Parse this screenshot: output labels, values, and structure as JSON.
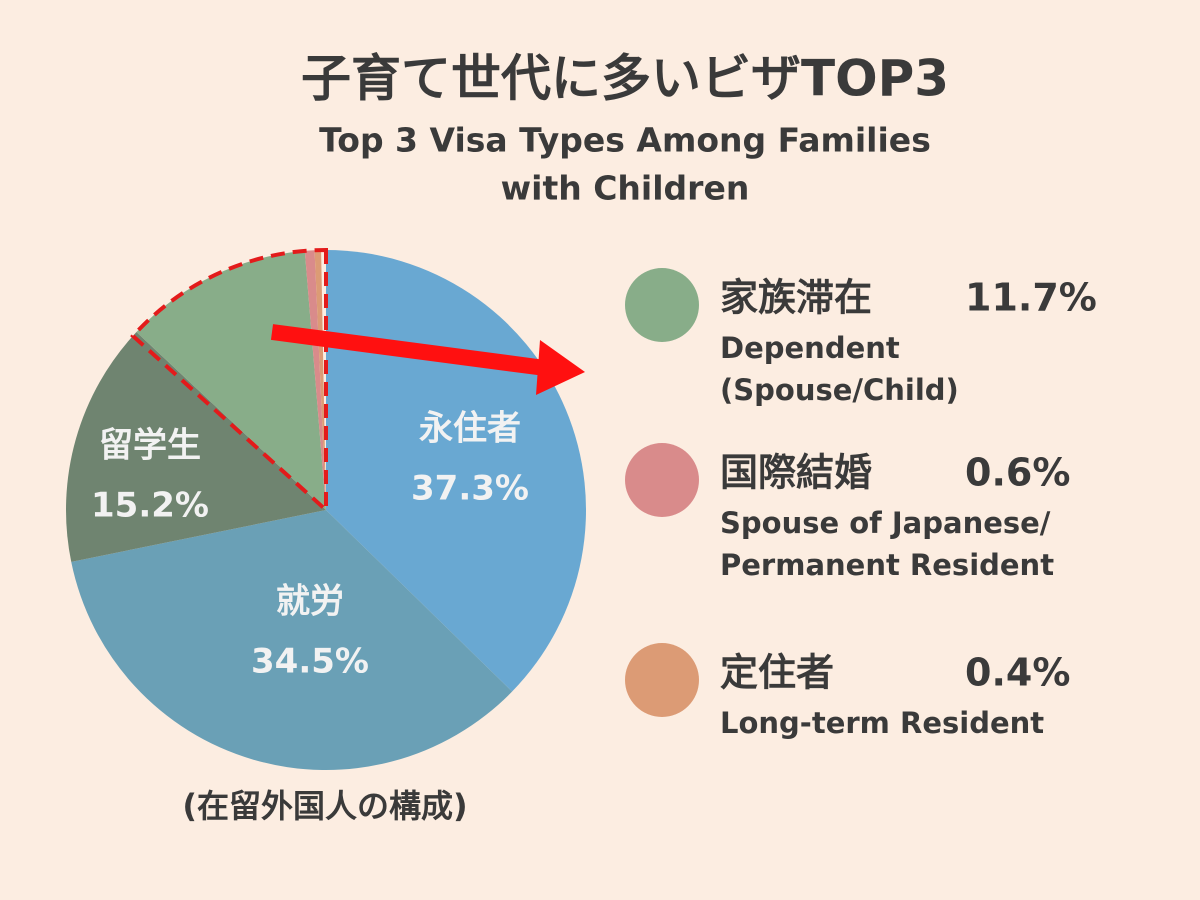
{
  "chart_data": {
    "type": "pie",
    "title": "子育て世代に多いビザTOP3",
    "subtitle": [
      "Top 3 Visa Types Among Families",
      "with Children"
    ],
    "note": "(在留外国人の構成)",
    "categories": [
      "永住者",
      "就労",
      "留学生",
      "家族滞在",
      "国際結婚",
      "定住者"
    ],
    "values": [
      37.3,
      34.5,
      15.2,
      11.7,
      0.6,
      0.4
    ],
    "value_labels": [
      "37.3%",
      "34.5%",
      "15.2%",
      "11.7%",
      "0.6%",
      "0.4%"
    ],
    "colors": [
      "#69a8d2",
      "#6aa0b6",
      "#6f8470",
      "#88ad89",
      "#d98b8b",
      "#dc9b75"
    ],
    "english_labels": [
      null,
      null,
      null,
      [
        "Dependent",
        "(Spouse/Child)"
      ],
      [
        "Spouse of Japanese/",
        "Permanent Resident"
      ],
      [
        "Long-term Resident"
      ]
    ]
  }
}
